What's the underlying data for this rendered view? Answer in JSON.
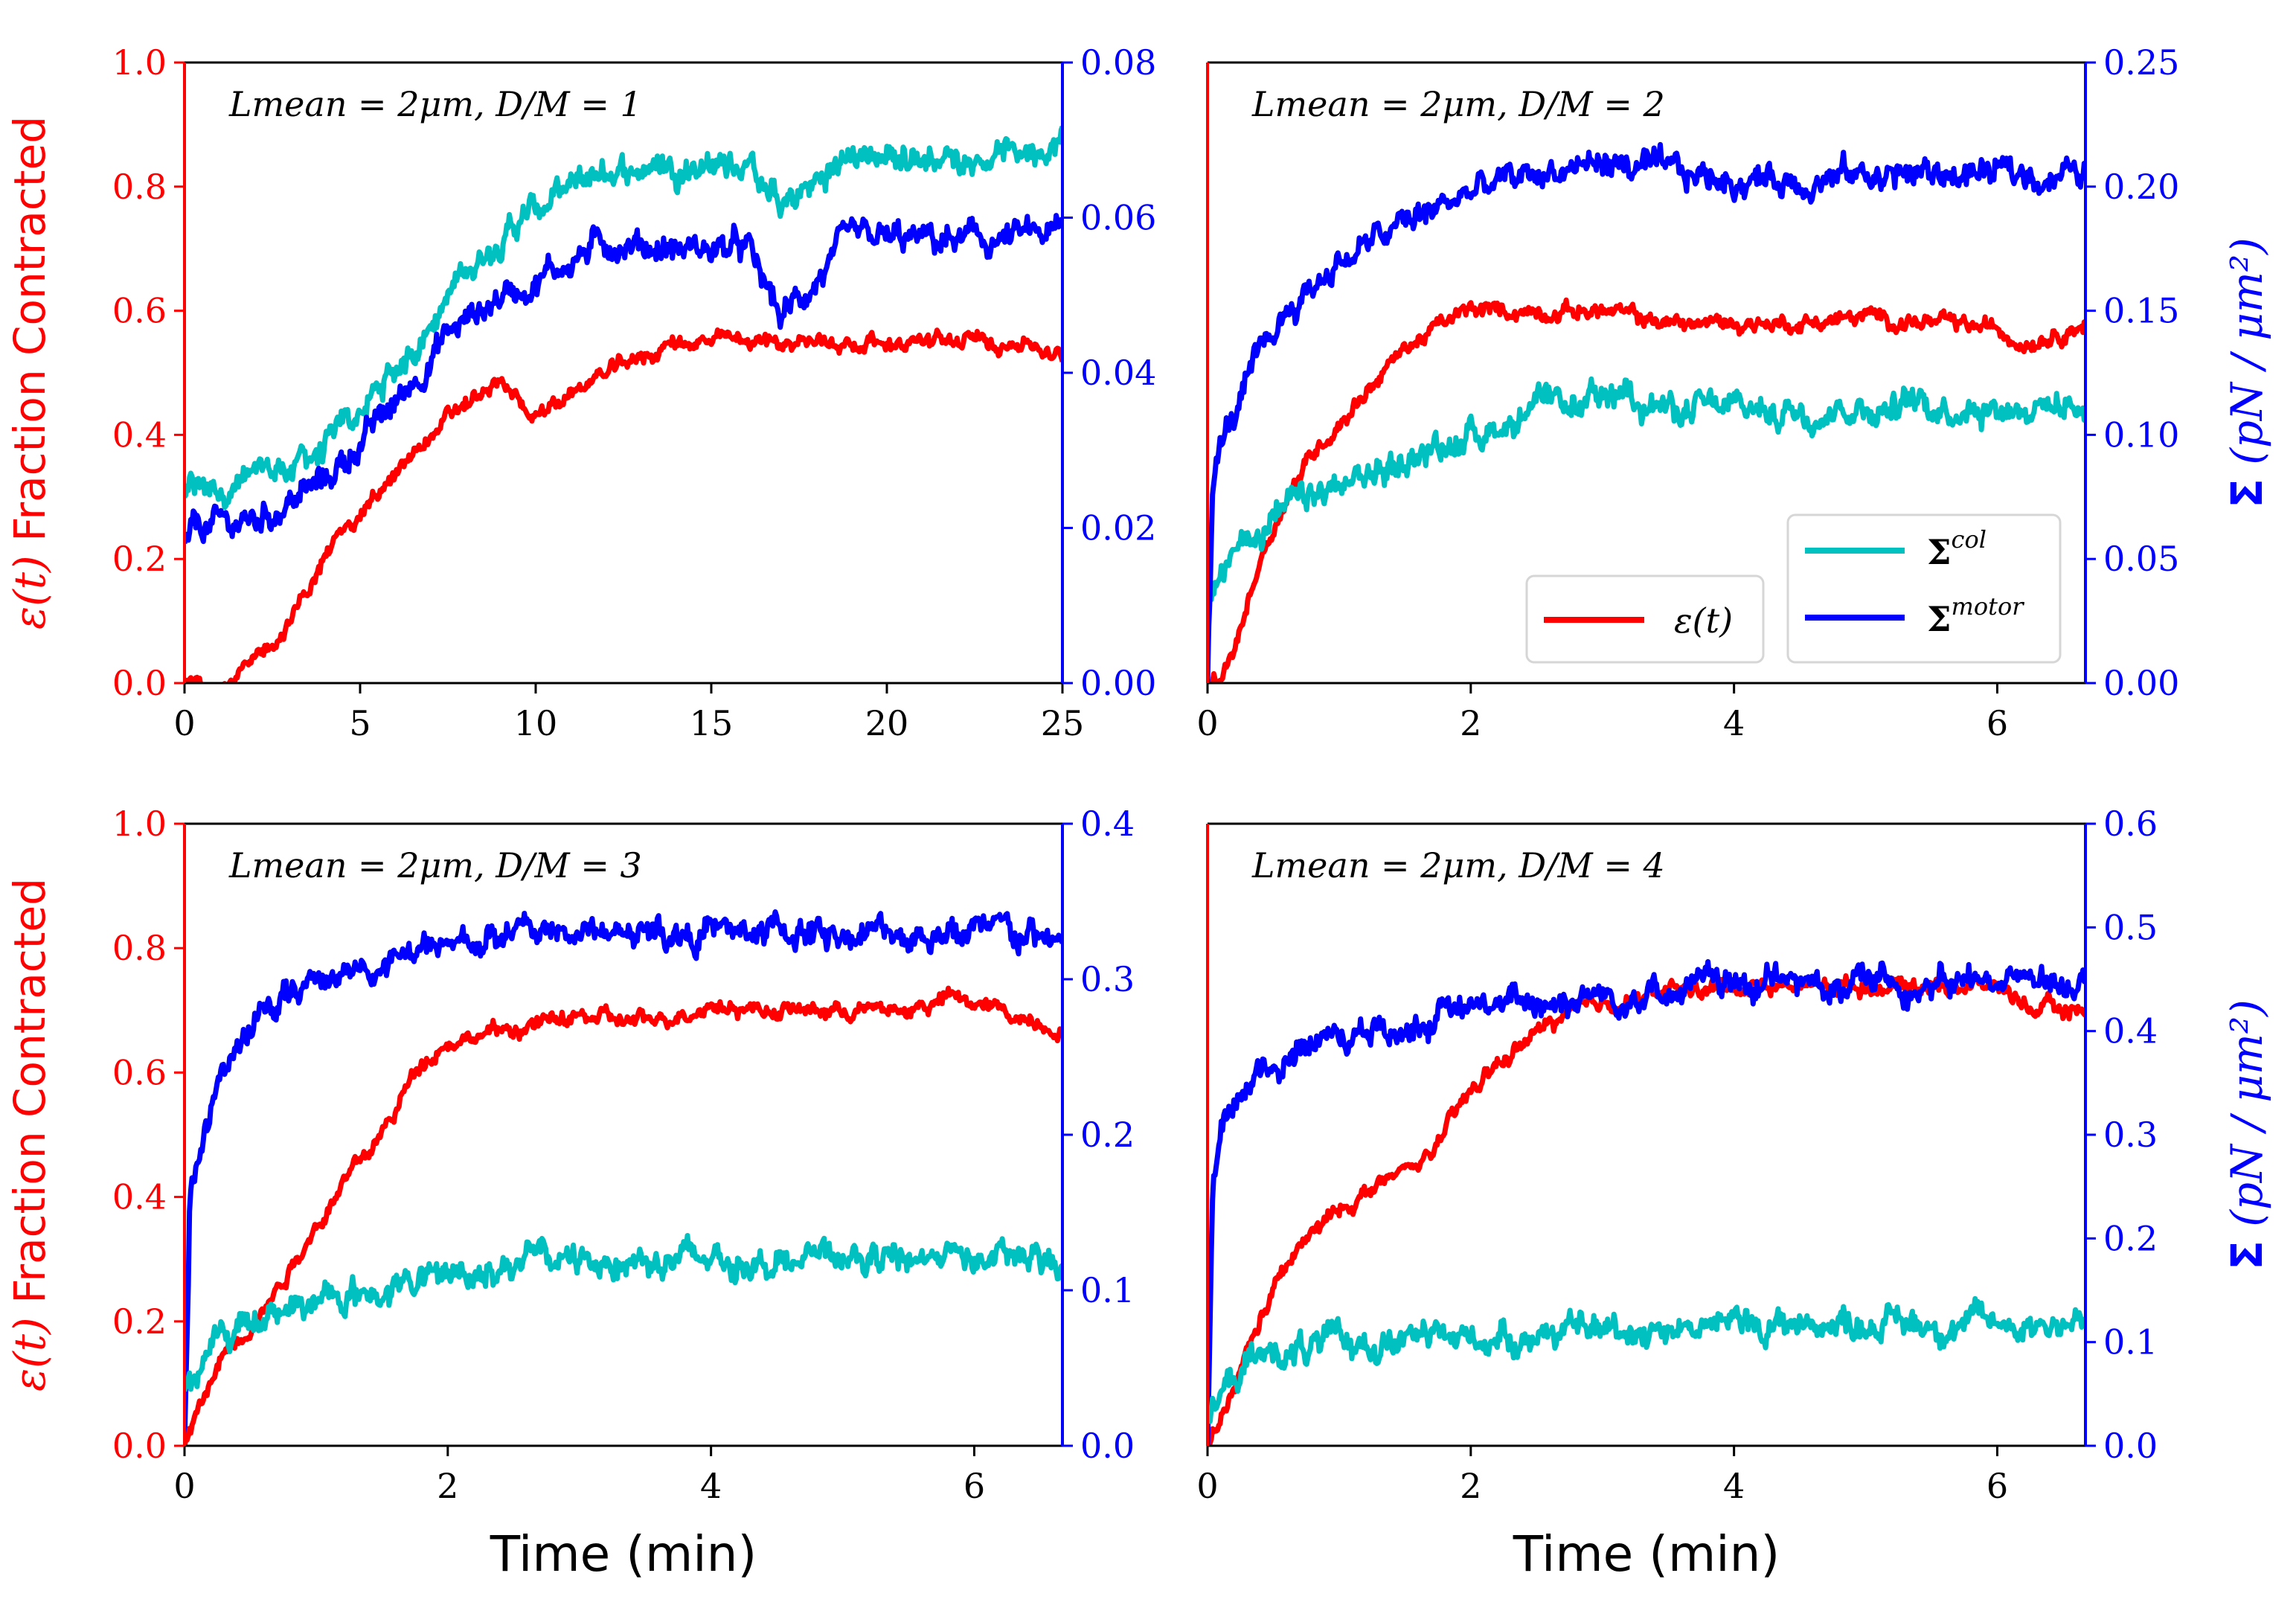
{
  "colors": {
    "strain": "#ff0000",
    "sigma_col": "#00c0c0",
    "sigma_motor": "#0000ff",
    "axis": "#000000"
  },
  "left_axis_label": {
    "epsilon": "ε(t)",
    "text": "Fraction Contracted"
  },
  "right_axis_label": {
    "sigma": "Σ",
    "units": "(pN / μm²)"
  },
  "x_axis_label": "Time (min)",
  "legend": {
    "strain": "ε(t)",
    "sigma_col": "Σcol",
    "sigma_motor": "Σmotor"
  },
  "chart_data": [
    {
      "type": "line",
      "annotation": "Lmean = 2μm, D/M = 1",
      "xlim": [
        0,
        25
      ],
      "xticks": [
        0,
        5,
        10,
        15,
        20,
        25
      ],
      "ylim_left": [
        0,
        1
      ],
      "yticks_left": [
        0.0,
        0.2,
        0.4,
        0.6,
        0.8,
        1.0
      ],
      "ylim_right": [
        0,
        0.08
      ],
      "yticks_right": [
        0.0,
        0.02,
        0.04,
        0.06,
        0.08
      ],
      "left_axis_title": true,
      "right_axis_title": false,
      "x_axis_title": false,
      "legend": false,
      "series": [
        {
          "key": "sigma_col",
          "axis": "right",
          "x": [
            0,
            0.3,
            2,
            4,
            6,
            7.5,
            9,
            10,
            12,
            14,
            16,
            17,
            19,
            21,
            23,
            25
          ],
          "y": [
            0.024,
            0.025,
            0.026,
            0.03,
            0.04,
            0.05,
            0.058,
            0.061,
            0.066,
            0.067,
            0.067,
            0.061,
            0.068,
            0.068,
            0.068,
            0.07
          ]
        },
        {
          "key": "sigma_motor",
          "axis": "right",
          "x": [
            0,
            0.3,
            2,
            4,
            6,
            7.5,
            9,
            10,
            12,
            14,
            16,
            17,
            19,
            21,
            23,
            25
          ],
          "y": [
            0.018,
            0.02,
            0.021,
            0.026,
            0.036,
            0.045,
            0.05,
            0.052,
            0.057,
            0.056,
            0.056,
            0.047,
            0.057,
            0.057,
            0.057,
            0.058
          ]
        },
        {
          "key": "strain",
          "axis": "left",
          "x": [
            0,
            1.2,
            2,
            3,
            4,
            5,
            6,
            7,
            8,
            9,
            10,
            12,
            14,
            16,
            18,
            20,
            22,
            24,
            25
          ],
          "y": [
            0.0,
            0.0,
            0.03,
            0.1,
            0.2,
            0.28,
            0.33,
            0.4,
            0.45,
            0.48,
            0.43,
            0.5,
            0.55,
            0.55,
            0.55,
            0.55,
            0.55,
            0.55,
            0.52
          ]
        }
      ]
    },
    {
      "type": "line",
      "annotation": "Lmean = 2μm, D/M = 2",
      "xlim": [
        0,
        6.67
      ],
      "xticks": [
        0,
        2,
        4,
        6
      ],
      "ylim_left": [
        0,
        1
      ],
      "yticks_left": [],
      "ylim_right": [
        0,
        0.25
      ],
      "yticks_right": [
        0.0,
        0.05,
        0.1,
        0.15,
        0.2,
        0.25
      ],
      "left_axis_title": false,
      "right_axis_title": true,
      "x_axis_title": false,
      "legend": true,
      "series": [
        {
          "key": "strain",
          "axis": "left",
          "x": [
            0,
            0.1,
            0.2,
            0.4,
            0.6,
            0.8,
            1.0,
            1.2,
            1.5,
            1.8,
            2.0,
            2.5,
            3.0,
            3.5,
            4.0,
            4.5,
            5.0,
            5.5,
            6.0,
            6.2,
            6.67
          ],
          "y": [
            0.0,
            0.0,
            0.05,
            0.2,
            0.3,
            0.37,
            0.42,
            0.47,
            0.54,
            0.58,
            0.6,
            0.6,
            0.6,
            0.58,
            0.58,
            0.58,
            0.59,
            0.58,
            0.57,
            0.55,
            0.58
          ]
        },
        {
          "key": "sigma_col",
          "axis": "right",
          "x": [
            0,
            0.05,
            0.3,
            0.6,
            1.0,
            1.5,
            2.0,
            2.5,
            3.0,
            3.2,
            3.5,
            4.0,
            4.5,
            5.0,
            5.5,
            6.0,
            6.67
          ],
          "y": [
            0.03,
            0.04,
            0.06,
            0.07,
            0.078,
            0.09,
            0.1,
            0.11,
            0.112,
            0.12,
            0.11,
            0.11,
            0.11,
            0.112,
            0.112,
            0.112,
            0.112
          ]
        },
        {
          "key": "sigma_motor",
          "axis": "right",
          "x": [
            0,
            0.04,
            0.1,
            0.3,
            0.6,
            1.0,
            1.5,
            2.0,
            2.5,
            3.0,
            3.5,
            4.0,
            4.5,
            5.0,
            5.5,
            6.0,
            6.67
          ],
          "y": [
            0.0,
            0.08,
            0.095,
            0.12,
            0.15,
            0.17,
            0.185,
            0.198,
            0.205,
            0.21,
            0.205,
            0.203,
            0.203,
            0.205,
            0.205,
            0.205,
            0.205
          ]
        }
      ]
    },
    {
      "type": "line",
      "annotation": "Lmean = 2μm, D/M = 3",
      "xlim": [
        0,
        6.67
      ],
      "xticks": [
        0,
        2,
        4,
        6
      ],
      "ylim_left": [
        0,
        1
      ],
      "yticks_left": [
        0.0,
        0.2,
        0.4,
        0.6,
        0.8,
        1.0
      ],
      "ylim_right": [
        0,
        0.4
      ],
      "yticks_right": [
        0.0,
        0.1,
        0.2,
        0.3,
        0.4
      ],
      "left_axis_title": true,
      "right_axis_title": false,
      "x_axis_title": true,
      "legend": false,
      "series": [
        {
          "key": "sigma_motor",
          "axis": "right",
          "x": [
            0,
            0.04,
            0.1,
            0.3,
            0.6,
            1.0,
            1.5,
            2.0,
            2.5,
            3.0,
            3.5,
            4.0,
            4.5,
            5.0,
            5.5,
            6.0,
            6.67
          ],
          "y": [
            0.0,
            0.16,
            0.19,
            0.24,
            0.28,
            0.3,
            0.31,
            0.32,
            0.33,
            0.33,
            0.33,
            0.33,
            0.33,
            0.33,
            0.33,
            0.33,
            0.325
          ]
        },
        {
          "key": "strain",
          "axis": "left",
          "x": [
            0,
            0.1,
            0.3,
            0.6,
            0.9,
            1.2,
            1.5,
            1.8,
            2.0,
            2.5,
            3.0,
            3.5,
            4.0,
            4.5,
            5.0,
            5.5,
            5.8,
            6.2,
            6.67
          ],
          "y": [
            0.0,
            0.05,
            0.15,
            0.22,
            0.32,
            0.42,
            0.5,
            0.62,
            0.65,
            0.67,
            0.69,
            0.68,
            0.71,
            0.7,
            0.7,
            0.7,
            0.72,
            0.7,
            0.67
          ]
        },
        {
          "key": "sigma_col",
          "axis": "right",
          "x": [
            0,
            0.05,
            0.3,
            0.6,
            1.0,
            1.5,
            2.0,
            2.5,
            3.0,
            3.5,
            4.0,
            4.5,
            5.0,
            5.5,
            5.8,
            6.0,
            6.67
          ],
          "y": [
            0.035,
            0.04,
            0.07,
            0.085,
            0.093,
            0.1,
            0.11,
            0.118,
            0.12,
            0.12,
            0.12,
            0.12,
            0.12,
            0.12,
            0.125,
            0.12,
            0.118
          ]
        }
      ]
    },
    {
      "type": "line",
      "annotation": "Lmean = 2μm, D/M = 4",
      "xlim": [
        0,
        6.67
      ],
      "xticks": [
        0,
        2,
        4,
        6
      ],
      "ylim_left": [
        0,
        1
      ],
      "yticks_left": [],
      "ylim_right": [
        0,
        0.6
      ],
      "yticks_right": [
        0.0,
        0.1,
        0.2,
        0.3,
        0.4,
        0.5,
        0.6
      ],
      "left_axis_title": false,
      "right_axis_title": true,
      "x_axis_title": true,
      "legend": false,
      "series": [
        {
          "key": "strain",
          "axis": "left",
          "x": [
            0,
            0.1,
            0.3,
            0.5,
            0.7,
            1.0,
            1.3,
            1.6,
            1.8,
            2.0,
            2.3,
            2.6,
            3.0,
            3.5,
            4.0,
            4.5,
            5.0,
            5.5,
            6.0,
            6.3,
            6.67
          ],
          "y": [
            0.0,
            0.03,
            0.15,
            0.25,
            0.32,
            0.38,
            0.42,
            0.45,
            0.5,
            0.57,
            0.63,
            0.68,
            0.71,
            0.73,
            0.74,
            0.74,
            0.74,
            0.74,
            0.74,
            0.7,
            0.7
          ]
        },
        {
          "key": "sigma_motor",
          "axis": "right",
          "x": [
            0,
            0.04,
            0.1,
            0.3,
            0.6,
            1.0,
            1.5,
            2.0,
            2.5,
            3.0,
            3.5,
            4.0,
            4.5,
            5.0,
            5.5,
            6.0,
            6.67
          ],
          "y": [
            0.0,
            0.24,
            0.29,
            0.35,
            0.38,
            0.395,
            0.405,
            0.42,
            0.43,
            0.435,
            0.44,
            0.445,
            0.445,
            0.45,
            0.445,
            0.45,
            0.45
          ]
        },
        {
          "key": "sigma_col",
          "axis": "right",
          "x": [
            0,
            0.05,
            0.3,
            0.6,
            1.0,
            1.5,
            2.0,
            2.5,
            3.0,
            3.5,
            4.0,
            4.5,
            5.0,
            5.5,
            6.0,
            6.67
          ],
          "y": [
            0.03,
            0.04,
            0.08,
            0.092,
            0.098,
            0.102,
            0.104,
            0.108,
            0.112,
            0.115,
            0.117,
            0.118,
            0.12,
            0.118,
            0.118,
            0.12
          ]
        }
      ]
    }
  ]
}
